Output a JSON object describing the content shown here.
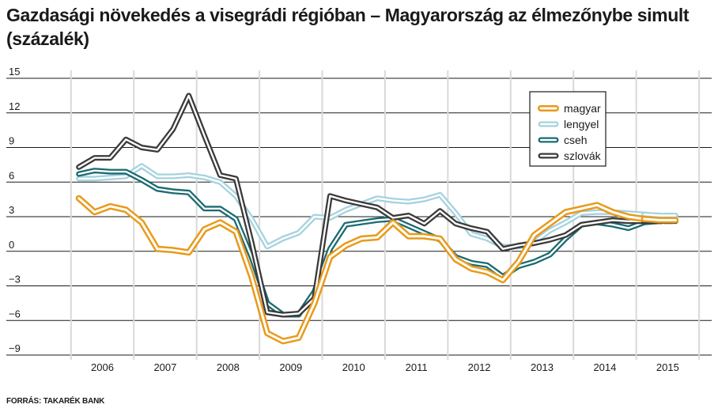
{
  "chart_data": {
    "type": "line",
    "title": "Gazdasági növekedés a visegrádi régióban – Magyarország az élmezőnybe simult (százalék)",
    "source": "FORRÁS: TAKARÉK BANK",
    "xlabel": "",
    "ylabel": "",
    "ylim": [
      -9,
      15
    ],
    "yticks": [
      15,
      12,
      9,
      6,
      3,
      0,
      -3,
      -6,
      -9
    ],
    "ytick_labels": [
      "15",
      "12",
      "9",
      "6",
      "3",
      "0",
      "−3",
      "−6",
      "−9"
    ],
    "x_range": [
      2005.5,
      2016.0
    ],
    "x_year_labels": [
      "2006",
      "2007",
      "2008",
      "2009",
      "2010",
      "2011",
      "2012",
      "2013",
      "2014",
      "2015"
    ],
    "grid": true,
    "legend_position": "top-right",
    "forecast_start": 2015.0,
    "series": [
      {
        "name": "magyar",
        "color": "#e89a1a",
        "points": [
          [
            2006.0,
            4.6
          ],
          [
            2006.25,
            3.4
          ],
          [
            2006.5,
            3.9
          ],
          [
            2006.75,
            3.6
          ],
          [
            2007.0,
            2.5
          ],
          [
            2007.25,
            0.2
          ],
          [
            2007.5,
            0.1
          ],
          [
            2007.75,
            -0.1
          ],
          [
            2008.0,
            1.9
          ],
          [
            2008.25,
            2.5
          ],
          [
            2008.5,
            1.7
          ],
          [
            2008.75,
            -2.2
          ],
          [
            2009.0,
            -7.1
          ],
          [
            2009.25,
            -7.8
          ],
          [
            2009.5,
            -7.5
          ],
          [
            2009.75,
            -4.5
          ],
          [
            2010.0,
            -0.5
          ],
          [
            2010.25,
            0.5
          ],
          [
            2010.5,
            1.1
          ],
          [
            2010.75,
            1.2
          ],
          [
            2011.0,
            2.5
          ],
          [
            2011.25,
            1.3
          ],
          [
            2011.5,
            1.3
          ],
          [
            2011.75,
            1.1
          ],
          [
            2012.0,
            -0.7
          ],
          [
            2012.25,
            -1.5
          ],
          [
            2012.5,
            -1.8
          ],
          [
            2012.75,
            -2.5
          ],
          [
            2013.0,
            -0.9
          ],
          [
            2013.25,
            1.4
          ],
          [
            2013.5,
            2.4
          ],
          [
            2013.75,
            3.4
          ],
          [
            2014.0,
            3.7
          ],
          [
            2014.25,
            4.0
          ],
          [
            2014.5,
            3.4
          ],
          [
            2014.75,
            3.0
          ],
          [
            2015.0,
            2.8
          ],
          [
            2015.25,
            2.7
          ],
          [
            2015.5,
            2.7
          ]
        ]
      },
      {
        "name": "lengyel",
        "color": "#a6d2de",
        "points": [
          [
            2006.0,
            6.3
          ],
          [
            2006.25,
            6.3
          ],
          [
            2006.5,
            6.4
          ],
          [
            2006.75,
            6.5
          ],
          [
            2007.0,
            7.4
          ],
          [
            2007.25,
            6.5
          ],
          [
            2007.5,
            6.5
          ],
          [
            2007.75,
            6.6
          ],
          [
            2008.0,
            6.4
          ],
          [
            2008.25,
            6.0
          ],
          [
            2008.5,
            4.8
          ],
          [
            2008.75,
            2.8
          ],
          [
            2009.0,
            0.4
          ],
          [
            2009.25,
            1.1
          ],
          [
            2009.5,
            1.6
          ],
          [
            2009.75,
            3.0
          ],
          [
            2010.0,
            2.9
          ],
          [
            2010.25,
            3.6
          ],
          [
            2010.5,
            4.1
          ],
          [
            2010.75,
            4.6
          ],
          [
            2011.0,
            4.4
          ],
          [
            2011.25,
            4.3
          ],
          [
            2011.5,
            4.5
          ],
          [
            2011.75,
            4.9
          ],
          [
            2012.0,
            3.3
          ],
          [
            2012.25,
            1.5
          ],
          [
            2012.5,
            1.1
          ],
          [
            2012.75,
            0.4
          ],
          [
            2013.0,
            0.4
          ],
          [
            2013.25,
            0.8
          ],
          [
            2013.5,
            1.8
          ],
          [
            2013.75,
            2.5
          ],
          [
            2014.0,
            3.3
          ],
          [
            2014.25,
            3.4
          ],
          [
            2014.5,
            3.4
          ],
          [
            2014.75,
            3.3
          ],
          [
            2015.0,
            3.2
          ],
          [
            2015.25,
            3.1
          ],
          [
            2015.5,
            3.1
          ]
        ]
      },
      {
        "name": "cseh",
        "color": "#1a6b70",
        "points": [
          [
            2006.0,
            6.7
          ],
          [
            2006.25,
            7.0
          ],
          [
            2006.5,
            6.9
          ],
          [
            2006.75,
            6.9
          ],
          [
            2007.0,
            6.2
          ],
          [
            2007.25,
            5.4
          ],
          [
            2007.5,
            5.2
          ],
          [
            2007.75,
            5.1
          ],
          [
            2008.0,
            3.7
          ],
          [
            2008.25,
            3.7
          ],
          [
            2008.5,
            2.8
          ],
          [
            2008.75,
            -0.5
          ],
          [
            2009.0,
            -4.5
          ],
          [
            2009.25,
            -5.5
          ],
          [
            2009.5,
            -5.5
          ],
          [
            2009.75,
            -3.5
          ],
          [
            2010.0,
            0.2
          ],
          [
            2010.25,
            2.3
          ],
          [
            2010.5,
            2.5
          ],
          [
            2010.75,
            2.7
          ],
          [
            2011.0,
            2.8
          ],
          [
            2011.25,
            2.2
          ],
          [
            2011.5,
            1.6
          ],
          [
            2011.75,
            1.0
          ],
          [
            2012.0,
            -0.5
          ],
          [
            2012.25,
            -1.0
          ],
          [
            2012.5,
            -1.2
          ],
          [
            2012.75,
            -2.2
          ],
          [
            2013.0,
            -1.3
          ],
          [
            2013.25,
            -0.9
          ],
          [
            2013.5,
            -0.3
          ],
          [
            2013.75,
            1.1
          ],
          [
            2014.0,
            2.3
          ],
          [
            2014.25,
            2.5
          ],
          [
            2014.5,
            2.3
          ],
          [
            2014.75,
            2.0
          ],
          [
            2015.0,
            2.5
          ],
          [
            2015.25,
            2.6
          ],
          [
            2015.5,
            2.7
          ]
        ]
      },
      {
        "name": "szlovák",
        "color": "#3a3a3a",
        "points": [
          [
            2006.0,
            7.3
          ],
          [
            2006.25,
            8.1
          ],
          [
            2006.5,
            8.1
          ],
          [
            2006.75,
            9.7
          ],
          [
            2007.0,
            9.0
          ],
          [
            2007.25,
            8.8
          ],
          [
            2007.5,
            10.6
          ],
          [
            2007.75,
            13.5
          ],
          [
            2008.0,
            10.0
          ],
          [
            2008.25,
            6.6
          ],
          [
            2008.5,
            6.3
          ],
          [
            2008.75,
            0.8
          ],
          [
            2009.0,
            -5.3
          ],
          [
            2009.25,
            -5.5
          ],
          [
            2009.5,
            -5.4
          ],
          [
            2009.75,
            -4.1
          ],
          [
            2010.0,
            4.8
          ],
          [
            2010.25,
            4.4
          ],
          [
            2010.5,
            4.1
          ],
          [
            2010.75,
            3.8
          ],
          [
            2011.0,
            2.9
          ],
          [
            2011.25,
            3.1
          ],
          [
            2011.5,
            2.4
          ],
          [
            2011.75,
            3.5
          ],
          [
            2012.0,
            2.4
          ],
          [
            2012.25,
            2.0
          ],
          [
            2012.5,
            1.7
          ],
          [
            2012.75,
            0.2
          ],
          [
            2013.0,
            0.5
          ],
          [
            2013.25,
            0.7
          ],
          [
            2013.5,
            1.0
          ],
          [
            2013.75,
            1.4
          ],
          [
            2014.0,
            2.3
          ],
          [
            2014.25,
            2.5
          ],
          [
            2014.5,
            2.7
          ],
          [
            2014.75,
            2.6
          ],
          [
            2015.0,
            2.6
          ],
          [
            2015.25,
            2.6
          ],
          [
            2015.5,
            2.6
          ]
        ]
      }
    ]
  }
}
